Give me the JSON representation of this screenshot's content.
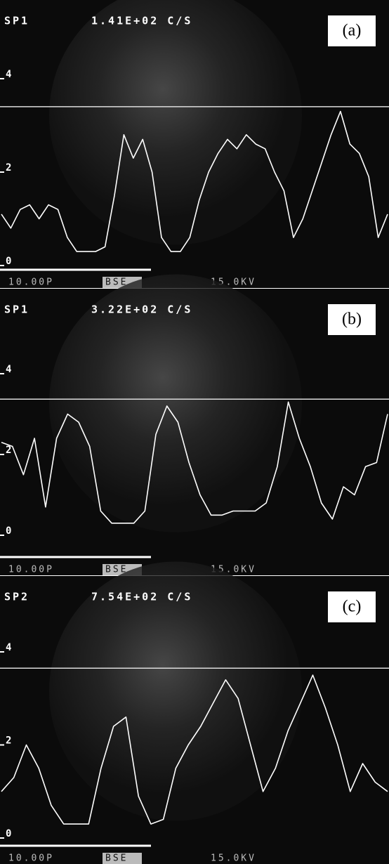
{
  "chart_data": [
    {
      "type": "line",
      "header": "SP1",
      "count_rate": "1.41E+02 C/S",
      "panel_label": "(a)",
      "scale_label": "10.00P",
      "mode_label": "BSE",
      "voltage_label": "15.0KV",
      "values": [
        1.1,
        0.8,
        1.2,
        1.3,
        1.0,
        1.3,
        1.2,
        0.6,
        0.3,
        0.3,
        0.3,
        0.4,
        1.5,
        2.8,
        2.3,
        2.7,
        2.0,
        0.6,
        0.3,
        0.3,
        0.6,
        1.4,
        2.0,
        2.4,
        2.7,
        2.5,
        2.8,
        2.6,
        2.5,
        2.0,
        1.6,
        0.6,
        1.0,
        1.6,
        2.2,
        2.8,
        3.3,
        2.6,
        2.4,
        1.9,
        0.6,
        1.1
      ],
      "color": "#ffffff",
      "ylim": [
        0,
        5
      ],
      "yticks": [
        0,
        2,
        4
      ],
      "reference_line": 3.4
    },
    {
      "type": "line",
      "header": "SP1",
      "count_rate": "3.22E+02 C/S",
      "panel_label": "(b)",
      "scale_label": "10.00P",
      "mode_label": "BSE",
      "voltage_label": "15.0KV",
      "values": [
        2.3,
        2.2,
        1.5,
        2.4,
        0.7,
        2.4,
        3.0,
        2.8,
        2.2,
        0.6,
        0.3,
        0.3,
        0.3,
        0.6,
        2.5,
        3.2,
        2.8,
        1.8,
        1.0,
        0.5,
        0.5,
        0.6,
        0.6,
        0.6,
        0.8,
        1.7,
        3.3,
        2.4,
        1.7,
        0.8,
        0.4,
        1.2,
        1.0,
        1.7,
        1.8,
        3.0
      ],
      "color": "#ffffff",
      "ylim": [
        0,
        5
      ],
      "yticks": [
        0,
        2,
        4
      ],
      "reference_line": 3.37
    },
    {
      "type": "line",
      "header": "SP2",
      "count_rate": "7.54E+02 C/S",
      "panel_label": "(c)",
      "scale_label": "10.00P",
      "mode_label": "BSE",
      "voltage_label": "15.0KV",
      "values": [
        1.0,
        1.3,
        2.0,
        1.5,
        0.7,
        0.3,
        0.3,
        0.3,
        1.5,
        2.4,
        2.6,
        0.9,
        0.3,
        0.4,
        1.5,
        2.0,
        2.4,
        2.9,
        3.4,
        3.0,
        2.0,
        1.0,
        1.5,
        2.3,
        2.9,
        3.5,
        2.8,
        2.0,
        1.0,
        1.6,
        1.2,
        1.0
      ],
      "color": "#ffffff",
      "ylim": [
        0,
        5
      ],
      "yticks": [
        0,
        2,
        4
      ],
      "reference_line": 3.65
    }
  ]
}
